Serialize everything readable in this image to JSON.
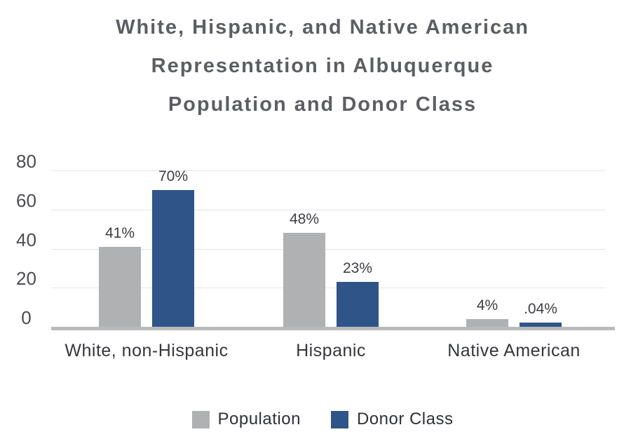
{
  "title": {
    "lines": [
      "White, Hispanic, and Native American",
      "Representation in Albuquerque",
      "Population and Donor Class"
    ]
  },
  "chart_data": {
    "type": "bar",
    "title": "White, Hispanic, and Native American Representation in Albuquerque Population and Donor Class",
    "categories": [
      "White, non-Hispanic",
      "Hispanic",
      "Native American"
    ],
    "series": [
      {
        "name": "Population",
        "values": [
          41,
          48,
          4
        ],
        "value_labels": [
          "41%",
          "48%",
          "4%"
        ],
        "color": "#B0B1B3"
      },
      {
        "name": "Donor Class",
        "values": [
          70,
          23,
          0.04
        ],
        "value_labels": [
          "70%",
          "23%",
          ".04%"
        ],
        "color": "#2F5588"
      }
    ],
    "xlabel": "",
    "ylabel": "",
    "ylim": [
      0,
      80
    ],
    "yticks": [
      0,
      20,
      40,
      60,
      80
    ],
    "grid": true,
    "legend_position": "bottom"
  },
  "colors": {
    "background": "#FFFFFF",
    "title_text": "#5C5E63",
    "tick_text": "#4A4C50",
    "category_text": "#35373B",
    "value_label_text": "#3C3E42",
    "gridline": "#E5E5E6",
    "axis_line": "#B9BABC",
    "population_bar": "#B0B1B3",
    "donor_class_bar": "#2F5588"
  }
}
